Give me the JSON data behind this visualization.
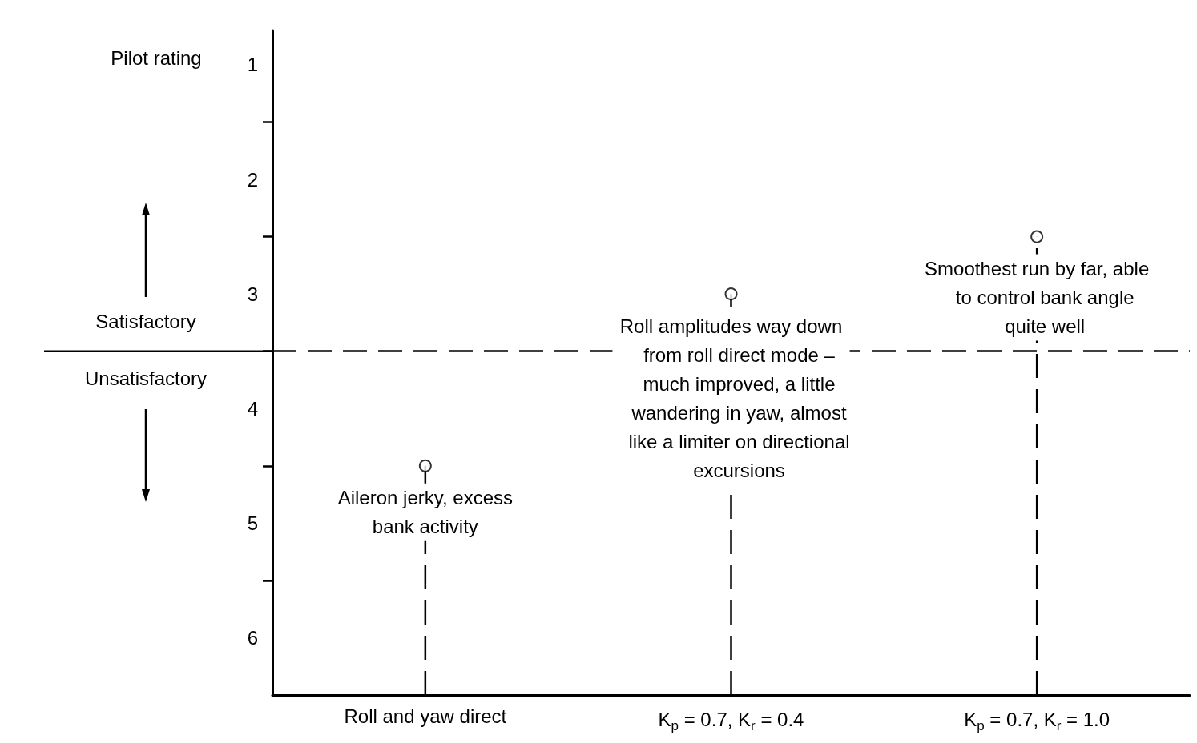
{
  "chart_data": {
    "type": "lollipop",
    "ylabel": "Pilot rating",
    "categories": [
      "Roll and yaw direct",
      "K$_{p}$ = 0.7, K$_{r}$ = 0.4",
      "K$_{p}$ = 0.7, K$_{r}$ = 1.0"
    ],
    "values": [
      4.5,
      3.0,
      2.5
    ],
    "color": "#000000",
    "marker": "circle",
    "line_style": "dashed",
    "ylim": [
      6.5,
      0.7
    ],
    "yticks": [
      1,
      {
        "value": 1.5,
        "label": null
      },
      2,
      {
        "value": 2.5,
        "label": null
      },
      3,
      {
        "value": 3.5,
        "label": null
      },
      4,
      {
        "value": 4.5,
        "label": null
      },
      5,
      {
        "value": 5.5,
        "label": null
      },
      6
    ],
    "ref_lines": [
      {
        "axis": "y",
        "value": 3.5,
        "label": null,
        "line_style": "dashed",
        "color": "#000000"
      }
    ],
    "annotations": [
      "Aileron jerky, excess\nbank activity",
      "Roll amplitudes way down\n   from roll direct mode –\n   much improved, a little\n   wandering in yaw, almost\n   like a limiter on directional\n   excursions",
      "Smoothest run by far, able\n   to control bank angle\n   quite well",
      "Satisfactory",
      "Unsatisfactory"
    ],
    "grid": false
  }
}
